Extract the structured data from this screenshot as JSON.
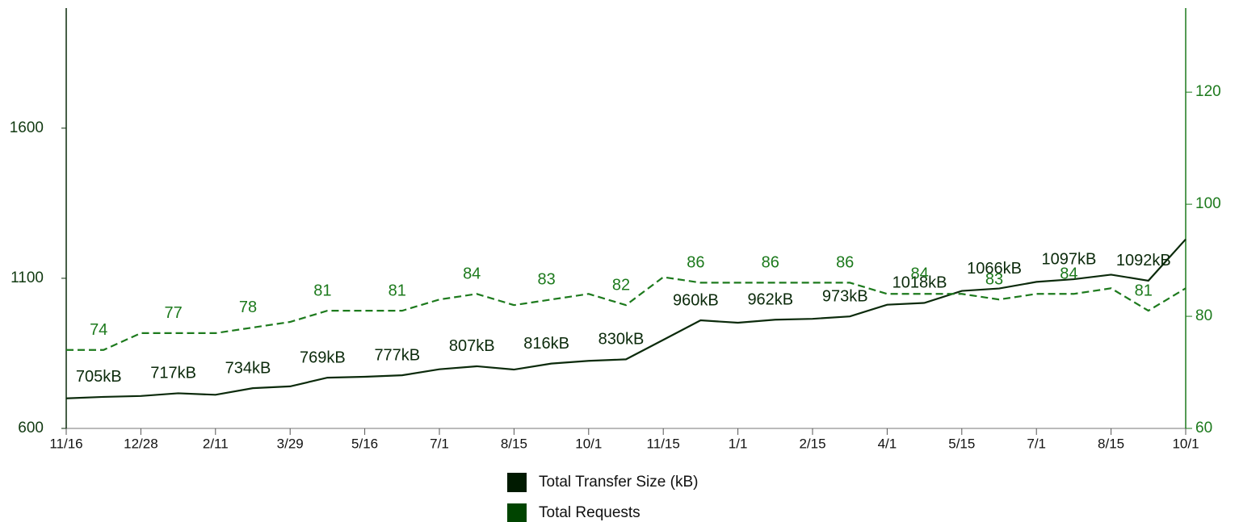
{
  "chart_data": {
    "type": "line",
    "categories": [
      "11/16",
      null,
      "12/28",
      null,
      "2/11",
      null,
      "3/29",
      null,
      "5/16",
      null,
      "7/1",
      null,
      "8/15",
      null,
      "10/1",
      null,
      "11/15",
      null,
      "1/1",
      null,
      "2/15",
      null,
      "4/1",
      null,
      "5/15",
      null,
      "7/1",
      null,
      "8/15",
      null,
      "10/1"
    ],
    "series": [
      {
        "name": "Total Transfer Size (kB)",
        "color": "#0b2a0b",
        "legend_color": "#001a00",
        "dash": false,
        "values": [
          700,
          705,
          708,
          717,
          712,
          734,
          740,
          769,
          772,
          777,
          797,
          807,
          796,
          816,
          825,
          830,
          895,
          960,
          952,
          962,
          965,
          973,
          1012,
          1018,
          1058,
          1066,
          1088,
          1097,
          1112,
          1092,
          1230
        ],
        "value_labels": [
          null,
          "705kB",
          null,
          "717kB",
          null,
          "734kB",
          null,
          "769kB",
          null,
          "777kB",
          null,
          "807kB",
          null,
          "816kB",
          null,
          "830kB",
          null,
          "960kB",
          null,
          "962kB",
          null,
          "973kB",
          null,
          "1018kB",
          null,
          "1066kB",
          null,
          "1097kB",
          null,
          "1092kB",
          null
        ]
      },
      {
        "name": "Total Requests",
        "color": "#1d7a1d",
        "legend_color": "#004400",
        "dash": true,
        "axis": "y2",
        "values": [
          74,
          74,
          77,
          77,
          77,
          78,
          79,
          81,
          81,
          81,
          83,
          84,
          82,
          83,
          84,
          82,
          87,
          86,
          86,
          86,
          86,
          86,
          84,
          84,
          84,
          83,
          84,
          84,
          85,
          81,
          85
        ],
        "value_labels": [
          null,
          "74",
          null,
          "77",
          null,
          "78",
          null,
          "81",
          null,
          "81",
          null,
          "84",
          null,
          "83",
          null,
          "82",
          null,
          "86",
          null,
          "86",
          null,
          "86",
          null,
          "84",
          null,
          "83",
          null,
          "84",
          null,
          "81",
          null
        ]
      }
    ],
    "ylim": [
      600,
      2000
    ],
    "yticks": [
      600,
      1100,
      1600
    ],
    "y2lim": [
      60,
      135
    ],
    "y2ticks": [
      60,
      80,
      100,
      120
    ]
  }
}
